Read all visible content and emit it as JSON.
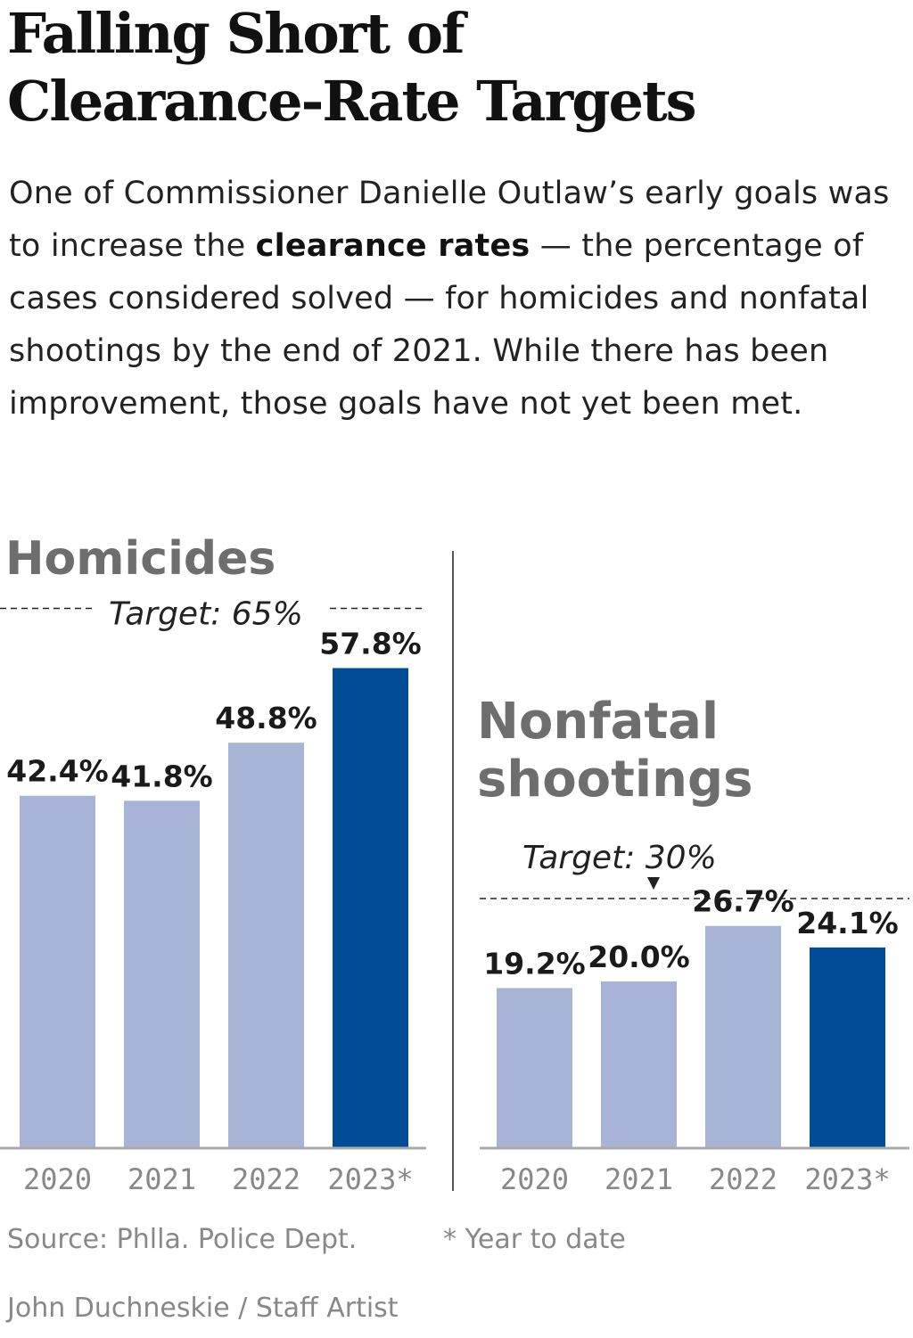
{
  "title_line1": "Falling Short of",
  "title_line2": "Clearance-Rate Targets",
  "dek": {
    "before": "One of Commissioner Danielle Outlaw’s early goals was to increase the ",
    "bold": "clearance rates",
    "after": " — the percentage of cases considered solved — for homicides and nonfatal shootings by the end of 2021. While there has been improvement, those goals have not yet been met."
  },
  "colors": {
    "bar_light": "#a7b4d6",
    "bar_highlight": "#004c97",
    "axis": "#aaaaaa"
  },
  "chart_data": [
    {
      "type": "bar",
      "title": "Homicides",
      "categories": [
        "2020",
        "2021",
        "2022",
        "2023*"
      ],
      "values": [
        42.4,
        41.8,
        48.8,
        57.8
      ],
      "value_labels": [
        "42.4%",
        "41.8%",
        "48.8%",
        "57.8%"
      ],
      "highlight_index": 3,
      "target": 65,
      "target_label": "Target: 65%",
      "ylim": [
        0,
        75
      ]
    },
    {
      "type": "bar",
      "title_lines": [
        "Nonfatal",
        "shootings"
      ],
      "categories": [
        "2020",
        "2021",
        "2022",
        "2023*"
      ],
      "values": [
        19.2,
        20.0,
        26.7,
        24.1
      ],
      "value_labels": [
        "19.2%",
        "20.0%",
        "26.7%",
        "24.1%"
      ],
      "highlight_index": 3,
      "target": 30,
      "target_label": "Target: 30%",
      "ylim": [
        0,
        75
      ]
    }
  ],
  "source": "Source: Phlla. Police Dept.",
  "note": "* Year to date",
  "credit": "John Duchneskie / Staff Artist"
}
